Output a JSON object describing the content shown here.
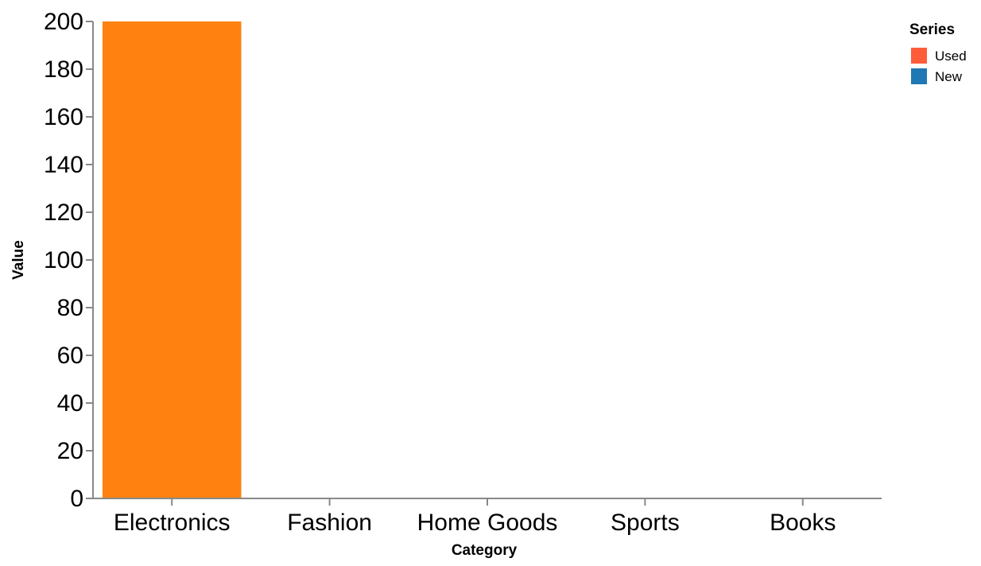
{
  "chart_data": {
    "type": "bar",
    "categories": [
      "Electronics",
      "Fashion",
      "Home Goods",
      "Sports",
      "Books"
    ],
    "series": [
      {
        "name": "Used",
        "values": [
          null,
          null,
          null,
          null,
          null
        ],
        "legend_color": "#ff5c3a"
      },
      {
        "name": "New",
        "values": [
          null,
          null,
          null,
          null,
          null
        ],
        "legend_color": "#1f78b4"
      }
    ],
    "bars": [
      {
        "category": "Electronics",
        "value": 200,
        "color": "#ff8210"
      }
    ],
    "xlabel": "Category",
    "ylabel": "Value",
    "ylim": [
      0,
      200
    ],
    "yticks": [
      0,
      20,
      40,
      60,
      80,
      100,
      120,
      140,
      160,
      180,
      200
    ],
    "grid": false,
    "legend": {
      "title": "Series",
      "placement": "top-right"
    }
  }
}
